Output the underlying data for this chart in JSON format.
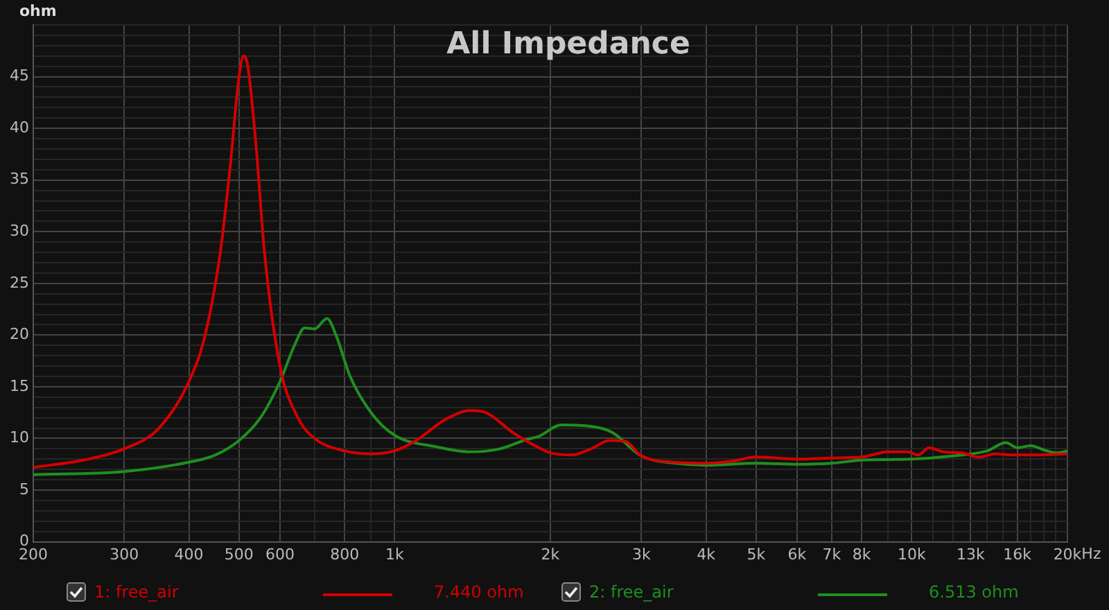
{
  "chart_data": {
    "type": "line",
    "title": "All Impedance",
    "ylabel": "ohm",
    "log": "x",
    "grid": true,
    "legend": "bottom",
    "xlim": [
      200,
      20000
    ],
    "ylim": [
      0,
      50
    ],
    "xticks": [
      {
        "value": 200,
        "label": "200"
      },
      {
        "value": 300,
        "label": "300"
      },
      {
        "value": 400,
        "label": "400"
      },
      {
        "value": 500,
        "label": "500"
      },
      {
        "value": 600,
        "label": "600"
      },
      {
        "value": 700,
        "label": null
      },
      {
        "value": 800,
        "label": "800"
      },
      {
        "value": 900,
        "label": null
      },
      {
        "value": 1000,
        "label": "1k"
      },
      {
        "value": 2000,
        "label": "2k"
      },
      {
        "value": 3000,
        "label": "3k"
      },
      {
        "value": 4000,
        "label": "4k"
      },
      {
        "value": 5000,
        "label": "5k"
      },
      {
        "value": 6000,
        "label": "6k"
      },
      {
        "value": 7000,
        "label": "7k"
      },
      {
        "value": 8000,
        "label": "8k"
      },
      {
        "value": 9000,
        "label": null
      },
      {
        "value": 10000,
        "label": "10k"
      },
      {
        "value": 11000,
        "label": null
      },
      {
        "value": 12000,
        "label": null
      },
      {
        "value": 13000,
        "label": "13k"
      },
      {
        "value": 14000,
        "label": null
      },
      {
        "value": 15000,
        "label": null
      },
      {
        "value": 16000,
        "label": "16k"
      },
      {
        "value": 17000,
        "label": null
      },
      {
        "value": 18000,
        "label": null
      },
      {
        "value": 19000,
        "label": null
      },
      {
        "value": 20000,
        "label": "20k"
      }
    ],
    "xlabel": "Hz",
    "yticks": [
      0,
      {
        "value": 1,
        "label": null
      },
      {
        "value": 2,
        "label": null
      },
      {
        "value": 3,
        "label": null
      },
      {
        "value": 4,
        "label": null
      },
      5,
      {
        "value": 6,
        "label": null
      },
      {
        "value": 7,
        "label": null
      },
      {
        "value": 8,
        "label": null
      },
      {
        "value": 9,
        "label": null
      },
      10,
      {
        "value": 11,
        "label": null
      },
      {
        "value": 12,
        "label": null
      },
      {
        "value": 13,
        "label": null
      },
      {
        "value": 14,
        "label": null
      },
      15,
      {
        "value": 16,
        "label": null
      },
      {
        "value": 17,
        "label": null
      },
      {
        "value": 18,
        "label": null
      },
      {
        "value": 19,
        "label": null
      },
      20,
      {
        "value": 21,
        "label": null
      },
      {
        "value": 22,
        "label": null
      },
      {
        "value": 23,
        "label": null
      },
      {
        "value": 24,
        "label": null
      },
      25,
      {
        "value": 26,
        "label": null
      },
      {
        "value": 27,
        "label": null
      },
      {
        "value": 28,
        "label": null
      },
      {
        "value": 29,
        "label": null
      },
      30,
      {
        "value": 31,
        "label": null
      },
      {
        "value": 32,
        "label": null
      },
      {
        "value": 33,
        "label": null
      },
      {
        "value": 34,
        "label": null
      },
      35,
      {
        "value": 36,
        "label": null
      },
      {
        "value": 37,
        "label": null
      },
      {
        "value": 38,
        "label": null
      },
      {
        "value": 39,
        "label": null
      },
      40,
      {
        "value": 41,
        "label": null
      },
      {
        "value": 42,
        "label": null
      },
      {
        "value": 43,
        "label": null
      },
      {
        "value": 44,
        "label": null
      },
      45,
      {
        "value": 46,
        "label": null
      },
      {
        "value": 47,
        "label": null
      },
      {
        "value": 48,
        "label": null
      },
      {
        "value": 49,
        "label": null
      },
      {
        "value": 50,
        "label": null
      }
    ],
    "series": [
      {
        "name": "1: free_air",
        "color": "#d40000",
        "x": [
          200,
          250,
          300,
          350,
          400,
          430,
          460,
          480,
          500,
          510,
          520,
          540,
          560,
          600,
          650,
          700,
          800,
          900,
          1000,
          1100,
          1250,
          1400,
          1500,
          1700,
          1900,
          2000,
          2200,
          2400,
          2600,
          2800,
          3000,
          3500,
          4000,
          4500,
          5000,
          6000,
          7000,
          8000,
          9000,
          9800,
          10300,
          10800,
          11500,
          12500,
          13500,
          14500,
          15500,
          17000,
          20000
        ],
        "values": [
          7.2,
          7.9,
          9.0,
          11.0,
          15.5,
          20,
          28,
          36,
          45,
          47,
          46,
          38,
          28,
          17,
          12,
          10,
          8.8,
          8.5,
          8.8,
          9.8,
          11.8,
          12.7,
          12.5,
          10.5,
          9.1,
          8.6,
          8.4,
          9.0,
          9.8,
          9.7,
          8.3,
          7.7,
          7.6,
          7.8,
          8.2,
          8.0,
          8.1,
          8.2,
          8.7,
          8.7,
          8.4,
          9.1,
          8.7,
          8.6,
          8.2,
          8.5,
          8.4,
          8.4,
          8.5
        ]
      },
      {
        "name": "2: free_air",
        "color": "#1f8f1f",
        "x": [
          200,
          300,
          400,
          450,
          500,
          550,
          600,
          640,
          670,
          700,
          740,
          770,
          820,
          900,
          1000,
          1200,
          1400,
          1600,
          1800,
          1900,
          2100,
          2500,
          2650,
          3000,
          3500,
          4000,
          5000,
          6000,
          7000,
          8000,
          10000,
          12000,
          14000,
          15200,
          16000,
          17000,
          18000,
          19000,
          20000
        ],
        "values": [
          6.5,
          6.8,
          7.7,
          8.4,
          9.8,
          12,
          15.5,
          19,
          20.7,
          20.6,
          21.6,
          20,
          16,
          12.5,
          10.3,
          9.2,
          8.7,
          9,
          9.9,
          10.2,
          11.3,
          11.0,
          10.5,
          8.3,
          7.6,
          7.4,
          7.6,
          7.5,
          7.6,
          7.9,
          8.0,
          8.3,
          8.8,
          9.6,
          9.1,
          9.3,
          8.9,
          8.6,
          8.8
        ]
      }
    ],
    "annotations": [
      "7.440 ohm",
      "6.513 ohm"
    ]
  }
}
